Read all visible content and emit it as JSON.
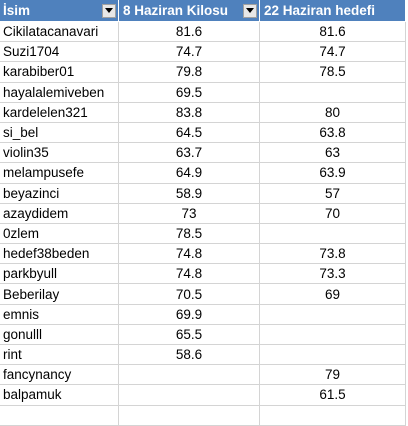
{
  "headers": {
    "name": "İsim",
    "weight": "8 Haziran Kilosu",
    "target": "22 Haziran hedefi"
  },
  "filter_icon": "chevron-down-icon",
  "rows": [
    {
      "name": "Cikilatacanavari",
      "weight": "81.6",
      "target": "81.6"
    },
    {
      "name": "Suzi1704",
      "weight": "74.7",
      "target": "74.7"
    },
    {
      "name": "karabiber01",
      "weight": "79.8",
      "target": "78.5"
    },
    {
      "name": "hayalalemiveben",
      "weight": "69.5",
      "target": ""
    },
    {
      "name": "kardelelen321",
      "weight": "83.8",
      "target": "80"
    },
    {
      "name": "si_bel",
      "weight": "64.5",
      "target": "63.8"
    },
    {
      "name": "violin35",
      "weight": "63.7",
      "target": "63"
    },
    {
      "name": "melampusefe",
      "weight": "64.9",
      "target": "63.9"
    },
    {
      "name": "beyazinci",
      "weight": "58.9",
      "target": "57"
    },
    {
      "name": "azaydidem",
      "weight": "73",
      "target": "70"
    },
    {
      "name": "0zlem",
      "weight": "78.5",
      "target": ""
    },
    {
      "name": "hedef38beden",
      "weight": "74.8",
      "target": "73.8"
    },
    {
      "name": "parkbyull",
      "weight": "74.8",
      "target": "73.3"
    },
    {
      "name": "Beberilay",
      "weight": "70.5",
      "target": "69"
    },
    {
      "name": "emnis",
      "weight": "69.9",
      "target": ""
    },
    {
      "name": "gonulll",
      "weight": "65.5",
      "target": ""
    },
    {
      "name": "rint",
      "weight": "58.6",
      "target": ""
    },
    {
      "name": "fancynancy",
      "weight": "",
      "target": "79"
    },
    {
      "name": "balpamuk",
      "weight": "",
      "target": "61.5"
    }
  ]
}
